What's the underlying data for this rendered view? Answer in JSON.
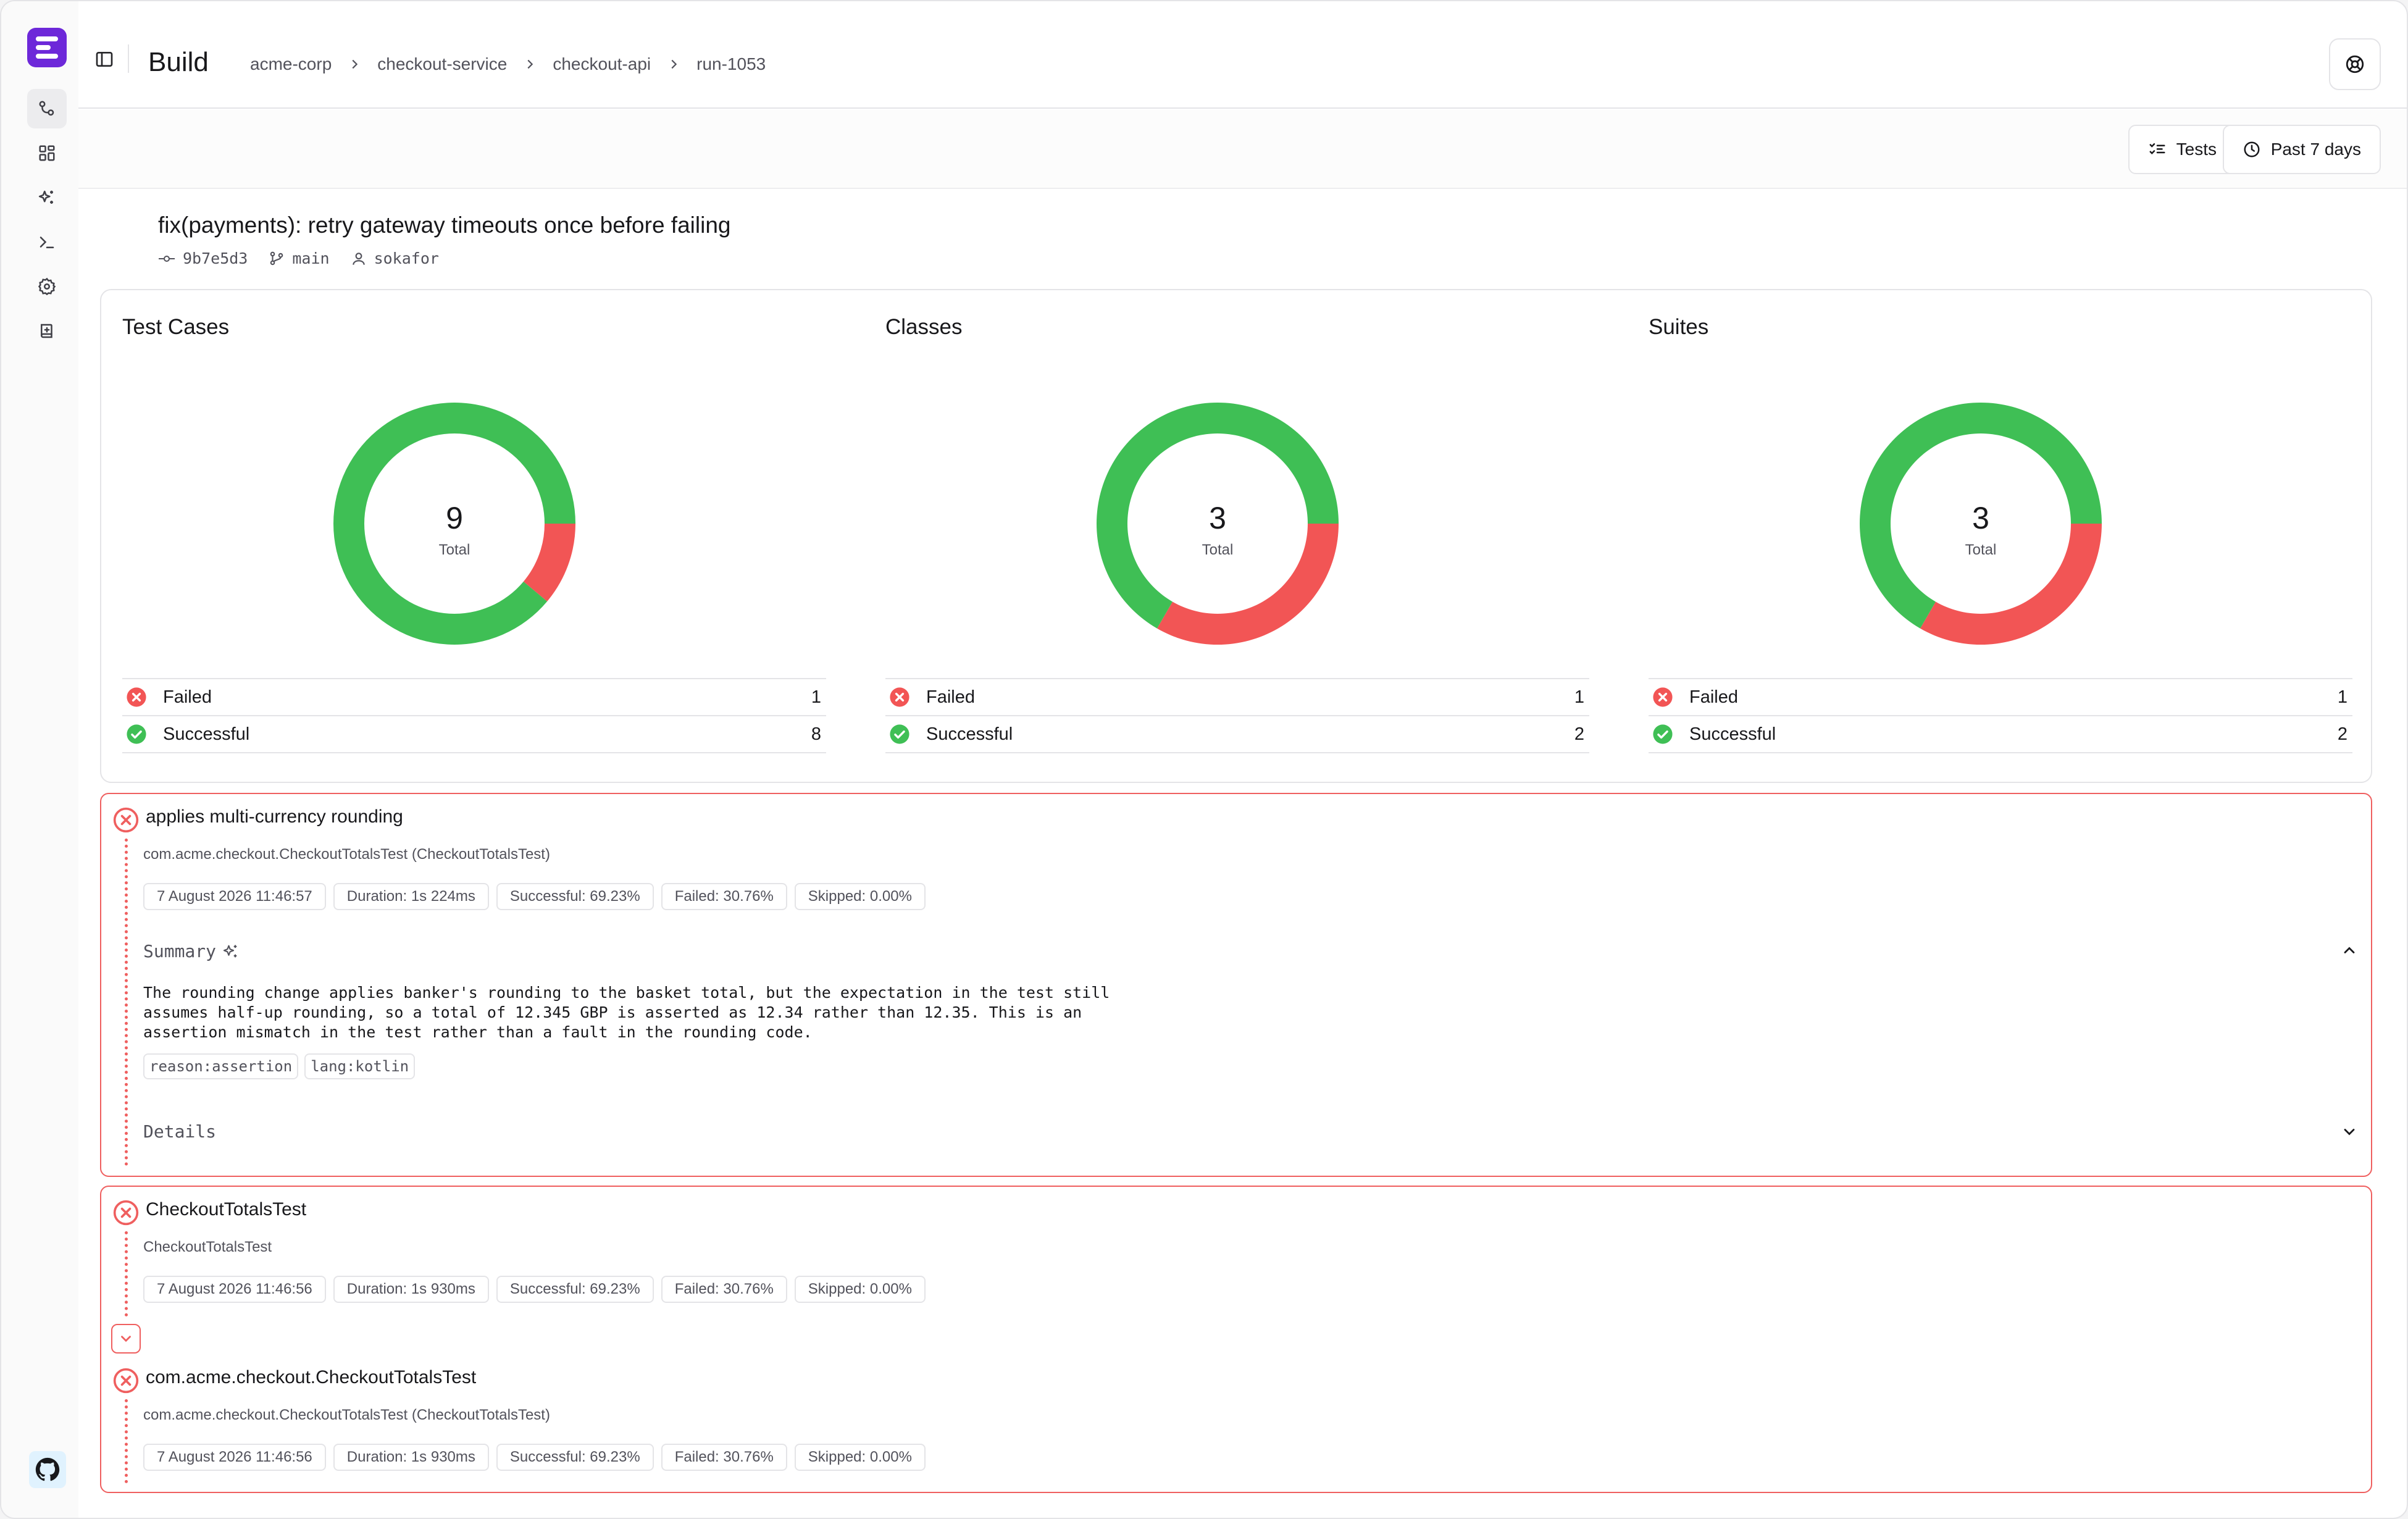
{
  "app": {
    "logo_name": "app-logo"
  },
  "header": {
    "title": "Build",
    "breadcrumb": [
      "acme-corp",
      "checkout-service",
      "checkout-api",
      "run-1053"
    ]
  },
  "toolbar": {
    "tests_label": "Tests",
    "range_label": "Past 7 days"
  },
  "commit": {
    "title": "fix(payments): retry gateway timeouts once before failing",
    "sha": "9b7e5d3",
    "branch": "main",
    "author": "sokafor"
  },
  "colors": {
    "success": "#3fbf55",
    "failure": "#f25555",
    "accent": "#6d28d9"
  },
  "stats": [
    {
      "title": "Test Cases",
      "total": "9",
      "total_label": "Total",
      "failed_label": "Failed",
      "failed": 1,
      "success_label": "Successful",
      "successful": 8
    },
    {
      "title": "Classes",
      "total": "3",
      "total_label": "Total",
      "failed_label": "Failed",
      "failed": 1,
      "success_label": "Successful",
      "successful": 2
    },
    {
      "title": "Suites",
      "total": "3",
      "total_label": "Total",
      "failed_label": "Failed",
      "failed": 1,
      "success_label": "Successful",
      "successful": 2
    }
  ],
  "chart_data": [
    {
      "type": "pie",
      "title": "Test Cases",
      "categories": [
        "Failed",
        "Successful"
      ],
      "values": [
        1,
        8
      ],
      "center_value": "9",
      "center_label": "Total"
    },
    {
      "type": "pie",
      "title": "Classes",
      "categories": [
        "Failed",
        "Successful"
      ],
      "values": [
        1,
        2
      ],
      "center_value": "3",
      "center_label": "Total"
    },
    {
      "type": "pie",
      "title": "Suites",
      "categories": [
        "Failed",
        "Successful"
      ],
      "values": [
        1,
        2
      ],
      "center_value": "3",
      "center_label": "Total"
    }
  ],
  "failures": [
    {
      "title": "applies multi-currency rounding",
      "subtitle": "com.acme.checkout.CheckoutTotalsTest (CheckoutTotalsTest)",
      "chips": [
        "7 August 2026 11:46:57",
        "Duration: 1s 224ms",
        "Successful: 69.23%",
        "Failed: 30.76%",
        "Skipped: 0.00%"
      ],
      "summary_label": "Summary",
      "summary_lines": [
        "The rounding change applies banker's rounding to the basket total, but the expectation in the test still",
        "assumes half-up rounding, so a total of 12.345 GBP is asserted as 12.34 rather than 12.35. This is an",
        "assertion mismatch in the test rather than a fault in the rounding code."
      ],
      "tags": [
        "reason:assertion",
        "lang:kotlin"
      ],
      "details_label": "Details"
    },
    {
      "title": "CheckoutTotalsTest",
      "subtitle": "CheckoutTotalsTest",
      "chips": [
        "7 August 2026 11:46:56",
        "Duration: 1s 930ms",
        "Successful: 69.23%",
        "Failed: 30.76%",
        "Skipped: 0.00%"
      ]
    },
    {
      "title": "com.acme.checkout.CheckoutTotalsTest",
      "subtitle": "com.acme.checkout.CheckoutTotalsTest (CheckoutTotalsTest)",
      "chips": [
        "7 August 2026 11:46:56",
        "Duration: 1s 930ms",
        "Successful: 69.23%",
        "Failed: 30.76%",
        "Skipped: 0.00%"
      ]
    }
  ]
}
